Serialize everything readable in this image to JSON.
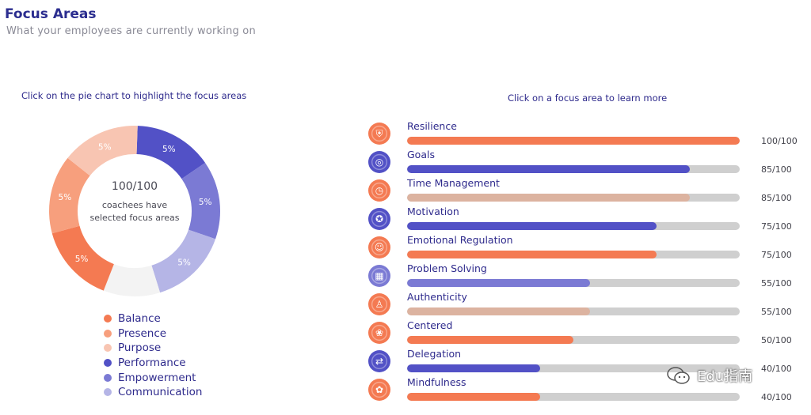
{
  "header": {
    "title": "Focus Areas",
    "subtitle": "What your employees are currently working on"
  },
  "left_panel": {
    "instruction": "Click on the pie chart to highlight the focus areas",
    "center_value": "100/100",
    "center_caption": "coachees have selected focus areas"
  },
  "right_panel": {
    "instruction": "Click on a focus area to learn more"
  },
  "colors": {
    "balance": "#f47a52",
    "presence": "#f79f7d",
    "purpose": "#f8c5b2",
    "performance": "#5251c6",
    "empowerment": "#7b7ad4",
    "communication": "#b5b5e6",
    "remainder": "#f3f3f3",
    "track": "#cfcfcf",
    "tan": "#dcb3a0"
  },
  "chart_data": [
    {
      "type": "pie",
      "subtype": "donut",
      "slices": [
        {
          "name": "Balance",
          "value": 5,
          "label": "5%",
          "color": "#f47a52"
        },
        {
          "name": "Presence",
          "value": 5,
          "label": "5%",
          "color": "#f79f7d"
        },
        {
          "name": "Purpose",
          "value": 5,
          "label": "5%",
          "color": "#f8c5b2"
        },
        {
          "name": "Performance",
          "value": 5,
          "label": "5%",
          "color": "#5251c6"
        },
        {
          "name": "Empowerment",
          "value": 5,
          "label": "5%",
          "color": "#7b7ad4"
        },
        {
          "name": "Communication",
          "value": 5,
          "label": "5%",
          "color": "#b5b5e6"
        }
      ],
      "remainder": {
        "value": 3.6,
        "color": "#f3f3f3"
      },
      "legend": [
        "Balance",
        "Presence",
        "Purpose",
        "Performance",
        "Empowerment",
        "Communication"
      ],
      "legend_position": "bottom"
    },
    {
      "type": "bar",
      "orientation": "horizontal",
      "max": 100,
      "categories": [
        "Resilience",
        "Goals",
        "Time Management",
        "Motivation",
        "Emotional Regulation",
        "Problem Solving",
        "Authenticity",
        "Centered",
        "Delegation",
        "Mindfulness"
      ],
      "values": [
        100,
        85,
        85,
        75,
        75,
        55,
        55,
        50,
        40,
        40
      ],
      "labels": [
        "100/100",
        "85/100",
        "85/100",
        "75/100",
        "75/100",
        "55/100",
        "55/100",
        "50/100",
        "40/100",
        "40/100"
      ],
      "colors": [
        "#f47a52",
        "#5251c6",
        "#dcb3a0",
        "#5251c6",
        "#f47a52",
        "#7b7ad4",
        "#dcb3a0",
        "#f47a52",
        "#5251c6",
        "#f47a52"
      ],
      "icons": [
        "shield-icon",
        "target-icon",
        "clock-icon",
        "medal-icon",
        "head-icon",
        "cube-icon",
        "person-check-icon",
        "meditation-icon",
        "delegate-icon",
        "mind-icon"
      ]
    }
  ],
  "watermark": {
    "text": "Edu指南"
  }
}
